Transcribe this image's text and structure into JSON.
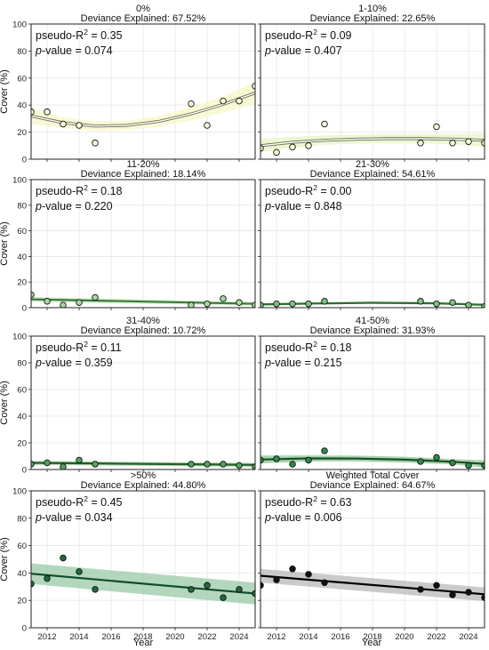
{
  "figure": {
    "x_axis_label": "Year",
    "y_axis_label": "Cover (%)",
    "deviance_prefix": "Deviance Explained: ",
    "pseudo_r2_label": "pseudo-R",
    "pseudo_r2_sup": "2",
    "pvalue_p": "p",
    "pvalue_rest": "-value = ",
    "x_ticks": [
      "2012",
      "2014",
      "2016",
      "2018",
      "2020",
      "2022",
      "2024"
    ],
    "y_ticks": [
      "0",
      "20",
      "40",
      "60",
      "80",
      "100"
    ]
  },
  "chart_data": [
    {
      "type": "scatter",
      "title": "0%",
      "deviance_explained": "67.52%",
      "pseudo_r2": "0.35",
      "p_value": "0.074",
      "xlim": [
        2011,
        2025
      ],
      "ylim": [
        0,
        100
      ],
      "grid": true,
      "colors": {
        "fill": "#fdfde0",
        "line": "#6b6b4d",
        "band": "#f7f7c8"
      },
      "points": [
        {
          "x": 2011,
          "y": 35
        },
        {
          "x": 2012,
          "y": 35
        },
        {
          "x": 2013,
          "y": 26
        },
        {
          "x": 2014,
          "y": 25
        },
        {
          "x": 2015,
          "y": 12
        },
        {
          "x": 2021,
          "y": 41
        },
        {
          "x": 2022,
          "y": 25
        },
        {
          "x": 2023,
          "y": 43
        },
        {
          "x": 2024,
          "y": 43
        },
        {
          "x": 2025,
          "y": 54
        }
      ],
      "fit": {
        "x": [
          2011,
          2013,
          2015,
          2017,
          2019,
          2021,
          2023,
          2025
        ],
        "y": [
          32,
          27,
          24.5,
          25,
          28,
          33.5,
          40.5,
          49
        ]
      },
      "band": {
        "lower": [
          26,
          23,
          21,
          21.5,
          24,
          28.5,
          34.5,
          41
        ],
        "upper": [
          38,
          31,
          28,
          28.5,
          32,
          38.5,
          46.5,
          57
        ]
      }
    },
    {
      "type": "scatter",
      "title": "1-10%",
      "deviance_explained": "22.65%",
      "pseudo_r2": "0.09",
      "p_value": "0.407",
      "xlim": [
        2011,
        2025
      ],
      "ylim": [
        0,
        100
      ],
      "grid": true,
      "colors": {
        "fill": "#f1f7d2",
        "line": "#5f6b4a",
        "band": "#e8f3c6"
      },
      "points": [
        {
          "x": 2011,
          "y": 8
        },
        {
          "x": 2012,
          "y": 5
        },
        {
          "x": 2013,
          "y": 9
        },
        {
          "x": 2014,
          "y": 10
        },
        {
          "x": 2015,
          "y": 26
        },
        {
          "x": 2021,
          "y": 12
        },
        {
          "x": 2022,
          "y": 24
        },
        {
          "x": 2023,
          "y": 12
        },
        {
          "x": 2024,
          "y": 13
        },
        {
          "x": 2025,
          "y": 12
        }
      ],
      "fit": {
        "x": [
          2011,
          2013,
          2015,
          2017,
          2019,
          2021,
          2023,
          2025
        ],
        "y": [
          10,
          12.5,
          14,
          14.8,
          15.2,
          15.2,
          14.8,
          14
        ]
      },
      "band": {
        "lower": [
          5,
          8.5,
          10.5,
          11.5,
          11.8,
          11.8,
          11,
          9
        ],
        "upper": [
          15,
          16.5,
          17.5,
          18.1,
          18.6,
          18.6,
          18.6,
          19
        ]
      }
    },
    {
      "type": "scatter",
      "title": "11-20%",
      "deviance_explained": "18.14%",
      "pseudo_r2": "0.18",
      "p_value": "0.220",
      "xlim": [
        2011,
        2025
      ],
      "ylim": [
        0,
        100
      ],
      "grid": true,
      "colors": {
        "fill": "#a8d9a0",
        "line": "#3b7a3b",
        "band": "#c9e8c2"
      },
      "points": [
        {
          "x": 2011,
          "y": 10
        },
        {
          "x": 2012,
          "y": 5
        },
        {
          "x": 2013,
          "y": 2
        },
        {
          "x": 2014,
          "y": 4
        },
        {
          "x": 2015,
          "y": 8
        },
        {
          "x": 2021,
          "y": 2
        },
        {
          "x": 2022,
          "y": 3
        },
        {
          "x": 2023,
          "y": 7
        },
        {
          "x": 2024,
          "y": 4
        },
        {
          "x": 2025,
          "y": 2
        }
      ],
      "fit": {
        "x": [
          2011,
          2025
        ],
        "y": [
          6.5,
          3
        ]
      },
      "band": {
        "lower": [
          4.5,
          1.5
        ],
        "upper": [
          8.5,
          4.5
        ]
      }
    },
    {
      "type": "scatter",
      "title": "21-30%",
      "deviance_explained": "54.61%",
      "pseudo_r2": "0.00",
      "p_value": "0.848",
      "xlim": [
        2011,
        2025
      ],
      "ylim": [
        0,
        100
      ],
      "grid": true,
      "colors": {
        "fill": "#7cc47e",
        "line": "#2f6b33",
        "band": "#b9dfb6"
      },
      "points": [
        {
          "x": 2011,
          "y": 2
        },
        {
          "x": 2012,
          "y": 3
        },
        {
          "x": 2013,
          "y": 3
        },
        {
          "x": 2014,
          "y": 3
        },
        {
          "x": 2015,
          "y": 5
        },
        {
          "x": 2021,
          "y": 5
        },
        {
          "x": 2022,
          "y": 3
        },
        {
          "x": 2023,
          "y": 4
        },
        {
          "x": 2024,
          "y": 2
        },
        {
          "x": 2025,
          "y": 1
        }
      ],
      "fit": {
        "x": [
          2011,
          2014,
          2018,
          2022,
          2025
        ],
        "y": [
          2.5,
          3.2,
          3.8,
          3.4,
          2.2
        ]
      },
      "band": {
        "lower": [
          1.5,
          2.4,
          2.9,
          2.5,
          1.2
        ],
        "upper": [
          3.5,
          4,
          4.7,
          4.3,
          3.2
        ]
      }
    },
    {
      "type": "scatter",
      "title": "31-40%",
      "deviance_explained": "10.72%",
      "pseudo_r2": "0.11",
      "p_value": "0.359",
      "xlim": [
        2011,
        2025
      ],
      "ylim": [
        0,
        100
      ],
      "grid": true,
      "colors": {
        "fill": "#4fa65a",
        "line": "#245c2c",
        "band": "#9fcf9f"
      },
      "points": [
        {
          "x": 2011,
          "y": 4
        },
        {
          "x": 2012,
          "y": 5
        },
        {
          "x": 2013,
          "y": 2
        },
        {
          "x": 2014,
          "y": 7
        },
        {
          "x": 2015,
          "y": 4
        },
        {
          "x": 2021,
          "y": 4
        },
        {
          "x": 2022,
          "y": 4
        },
        {
          "x": 2023,
          "y": 4
        },
        {
          "x": 2024,
          "y": 3
        },
        {
          "x": 2025,
          "y": 2
        }
      ],
      "fit": {
        "x": [
          2011,
          2025
        ],
        "y": [
          5,
          3.5
        ]
      },
      "band": {
        "lower": [
          3.5,
          2
        ],
        "upper": [
          6.5,
          5
        ]
      }
    },
    {
      "type": "scatter",
      "title": "41-50%",
      "deviance_explained": "31.93%",
      "pseudo_r2": "0.18",
      "p_value": "0.215",
      "xlim": [
        2011,
        2025
      ],
      "ylim": [
        0,
        100
      ],
      "grid": true,
      "colors": {
        "fill": "#2e8b46",
        "line": "#1c4e25",
        "band": "#8cc596"
      },
      "points": [
        {
          "x": 2011,
          "y": 7
        },
        {
          "x": 2012,
          "y": 8
        },
        {
          "x": 2013,
          "y": 4
        },
        {
          "x": 2014,
          "y": 7
        },
        {
          "x": 2015,
          "y": 14
        },
        {
          "x": 2021,
          "y": 6
        },
        {
          "x": 2022,
          "y": 9
        },
        {
          "x": 2023,
          "y": 5
        },
        {
          "x": 2024,
          "y": 3
        },
        {
          "x": 2025,
          "y": 3
        }
      ],
      "fit": {
        "x": [
          2011,
          2014,
          2017,
          2020,
          2023,
          2025
        ],
        "y": [
          7.5,
          8.3,
          8.2,
          7.4,
          5.8,
          4.2
        ]
      },
      "band": {
        "lower": [
          4.5,
          6,
          6,
          5.2,
          3.8,
          1.5
        ],
        "upper": [
          10.5,
          10.6,
          10.4,
          9.6,
          7.8,
          6.9
        ]
      }
    },
    {
      "type": "scatter",
      "title": ">50%",
      "deviance_explained": "44.80%",
      "pseudo_r2": "0.45",
      "p_value": "0.034",
      "xlim": [
        2011,
        2025
      ],
      "ylim": [
        0,
        100
      ],
      "grid": true,
      "colors": {
        "fill": "#1f6b3e",
        "line": "#0f4d26",
        "band": "#98c9a6"
      },
      "points": [
        {
          "x": 2011,
          "y": 32
        },
        {
          "x": 2012,
          "y": 36
        },
        {
          "x": 2013,
          "y": 51
        },
        {
          "x": 2014,
          "y": 41
        },
        {
          "x": 2015,
          "y": 28
        },
        {
          "x": 2021,
          "y": 28
        },
        {
          "x": 2022,
          "y": 31
        },
        {
          "x": 2023,
          "y": 22
        },
        {
          "x": 2024,
          "y": 28
        },
        {
          "x": 2025,
          "y": 25
        }
      ],
      "fit": {
        "x": [
          2011,
          2025
        ],
        "y": [
          39.5,
          25
        ]
      },
      "band": {
        "lower": [
          32,
          17
        ],
        "upper": [
          47,
          33
        ]
      }
    },
    {
      "type": "scatter",
      "title": "Weighted Total Cover",
      "deviance_explained": "64.67%",
      "pseudo_r2": "0.63",
      "p_value": "0.006",
      "xlim": [
        2011,
        2025
      ],
      "ylim": [
        0,
        100
      ],
      "grid": true,
      "colors": {
        "fill": "#111111",
        "line": "#000000",
        "band": "#b8b8b8"
      },
      "points": [
        {
          "x": 2011,
          "y": 31
        },
        {
          "x": 2012,
          "y": 35
        },
        {
          "x": 2013,
          "y": 43
        },
        {
          "x": 2014,
          "y": 39
        },
        {
          "x": 2015,
          "y": 33
        },
        {
          "x": 2021,
          "y": 28
        },
        {
          "x": 2022,
          "y": 31
        },
        {
          "x": 2023,
          "y": 24
        },
        {
          "x": 2024,
          "y": 26
        },
        {
          "x": 2025,
          "y": 22
        }
      ],
      "fit": {
        "x": [
          2011,
          2025
        ],
        "y": [
          38,
          24.5
        ]
      },
      "band": {
        "lower": [
          33,
          19.5
        ],
        "upper": [
          43,
          29.5
        ]
      }
    }
  ]
}
